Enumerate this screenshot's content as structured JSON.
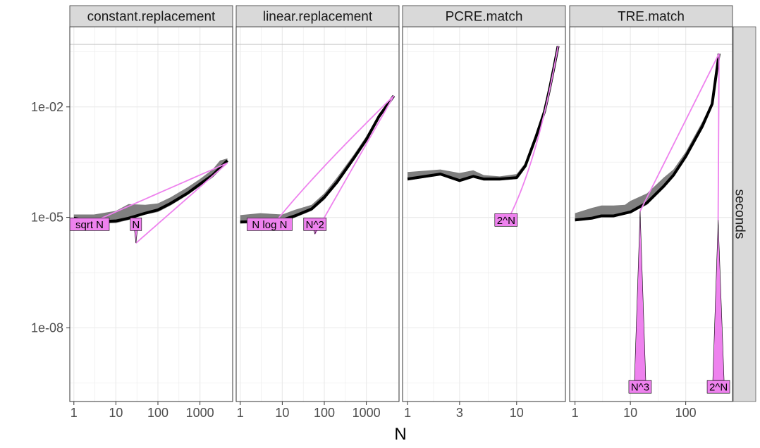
{
  "chart_data": {
    "type": "line",
    "log_x": true,
    "log_y": true,
    "xlabel": "N",
    "ylabel": "",
    "y_strip_label": "seconds",
    "y_ticks": [
      {
        "value": 1e-08,
        "label": "1e-08"
      },
      {
        "value": 1e-05,
        "label": "1e-05"
      },
      {
        "value": 0.01,
        "label": "1e-02"
      }
    ],
    "ylim": [
      1e-10,
      1.5
    ],
    "grid": true,
    "hline": 0.5,
    "colors": {
      "median": "#000000",
      "band": "#7f7f7f",
      "reference": "#ee82ee",
      "ref_fill": "#ee82ee",
      "strip_bg": "#d9d9d9",
      "grid": "#ebebeb"
    },
    "panels": [
      {
        "title": "constant.replacement",
        "xlim": [
          0.8,
          6000
        ],
        "x_ticks": [
          {
            "value": 1,
            "label": "1"
          },
          {
            "value": 10,
            "label": "10"
          },
          {
            "value": 100,
            "label": "100"
          },
          {
            "value": 1000,
            "label": "1000"
          }
        ],
        "median": [
          [
            1,
            9.5e-06
          ],
          [
            3,
            7.5e-06
          ],
          [
            10,
            8e-06
          ],
          [
            20,
            9.5e-06
          ],
          [
            50,
            1.3e-05
          ],
          [
            100,
            1.6e-05
          ],
          [
            200,
            2.4e-05
          ],
          [
            500,
            4.5e-05
          ],
          [
            1000,
            8e-05
          ],
          [
            2000,
            0.00014
          ],
          [
            3000,
            0.00022
          ],
          [
            4500,
            0.00035
          ]
        ],
        "band_low": [
          [
            1,
            8.5e-06
          ],
          [
            3,
            6.8e-06
          ],
          [
            10,
            7e-06
          ],
          [
            20,
            8.5e-06
          ],
          [
            50,
            1.2e-05
          ],
          [
            100,
            1.4e-05
          ],
          [
            200,
            2.1e-05
          ],
          [
            500,
            4e-05
          ],
          [
            1000,
            7e-05
          ],
          [
            2000,
            0.00012
          ],
          [
            3000,
            0.00019
          ],
          [
            4500,
            0.0003
          ]
        ],
        "band_high": [
          [
            1,
            1.2e-05
          ],
          [
            3,
            1.2e-05
          ],
          [
            10,
            1.5e-05
          ],
          [
            20,
            2.3e-05
          ],
          [
            50,
            2.2e-05
          ],
          [
            100,
            2.4e-05
          ],
          [
            200,
            3.5e-05
          ],
          [
            500,
            6.5e-05
          ],
          [
            1000,
            0.00011
          ],
          [
            2000,
            0.0002
          ],
          [
            3000,
            0.00035
          ],
          [
            4500,
            0.0004
          ]
        ],
        "references": [
          {
            "label": "sqrt N",
            "x_from": 1,
            "x_to": 4500,
            "y_at_to": 0.0003,
            "exponent": 0.5,
            "label_x": 1,
            "label_y": 6.5e-06
          },
          {
            "label": "N",
            "x_from": 30,
            "x_to": 4500,
            "y_at_to": 0.0003,
            "exponent": 1,
            "label_x": 30,
            "label_y": 6.5e-06
          }
        ]
      },
      {
        "title": "linear.replacement",
        "xlim": [
          0.8,
          6000
        ],
        "x_ticks": [
          {
            "value": 1,
            "label": "1"
          },
          {
            "value": 10,
            "label": "10"
          },
          {
            "value": 100,
            "label": "100"
          },
          {
            "value": 1000,
            "label": "1000"
          }
        ],
        "median": [
          [
            1,
            7.5e-06
          ],
          [
            3,
            7.8e-06
          ],
          [
            10,
            8.5e-06
          ],
          [
            20,
            1.1e-05
          ],
          [
            50,
            1.7e-05
          ],
          [
            100,
            3.5e-05
          ],
          [
            200,
            9e-05
          ],
          [
            500,
            0.0004
          ],
          [
            1000,
            0.0013
          ],
          [
            2000,
            0.0055
          ],
          [
            4500,
            0.02
          ]
        ],
        "band_low": [
          [
            1,
            6.8e-06
          ],
          [
            3,
            7e-06
          ],
          [
            10,
            7.5e-06
          ],
          [
            20,
            9.8e-06
          ],
          [
            50,
            1.5e-05
          ],
          [
            100,
            3e-05
          ],
          [
            200,
            8e-05
          ],
          [
            500,
            0.00035
          ],
          [
            1000,
            0.0011
          ],
          [
            2000,
            0.005
          ],
          [
            4500,
            0.018
          ]
        ],
        "band_high": [
          [
            1,
            1.15e-05
          ],
          [
            3,
            1.3e-05
          ],
          [
            10,
            1.2e-05
          ],
          [
            20,
            1.6e-05
          ],
          [
            50,
            2.2e-05
          ],
          [
            100,
            4.5e-05
          ],
          [
            200,
            0.00012
          ],
          [
            500,
            0.0005
          ],
          [
            1000,
            0.0016
          ],
          [
            2000,
            0.0065
          ],
          [
            4500,
            0.021
          ]
        ],
        "references": [
          {
            "label": "N log N",
            "x_from": 5,
            "x_to": 4500,
            "y_at_to": 0.02,
            "exponent": 1,
            "log_factor": true,
            "label_x": 5,
            "label_y": 6.5e-06
          },
          {
            "label": "N^2",
            "x_from": 60,
            "x_to": 4500,
            "y_at_to": 0.02,
            "exponent": 2,
            "label_x": 60,
            "label_y": 6.5e-06
          }
        ]
      },
      {
        "title": "PCRE.match",
        "xlim": [
          0.9,
          28
        ],
        "x_ticks": [
          {
            "value": 1,
            "label": "1"
          },
          {
            "value": 3,
            "label": "3"
          },
          {
            "value": 10,
            "label": "10"
          }
        ],
        "median": [
          [
            1,
            0.00011
          ],
          [
            2,
            0.00015
          ],
          [
            3,
            0.0001
          ],
          [
            4,
            0.00013
          ],
          [
            5,
            0.00011
          ],
          [
            7,
            0.00011
          ],
          [
            10,
            0.00012
          ],
          [
            12,
            0.00025
          ],
          [
            15,
            0.0015
          ],
          [
            18,
            0.0075
          ],
          [
            20,
            0.03
          ],
          [
            22,
            0.12
          ],
          [
            24,
            0.45
          ]
        ],
        "band_low": [
          [
            1,
            0.0001
          ],
          [
            2,
            0.00014
          ],
          [
            3,
            9.2e-05
          ],
          [
            4,
            0.00012
          ],
          [
            5,
            0.0001
          ],
          [
            7,
            0.0001
          ],
          [
            10,
            0.00011
          ],
          [
            12,
            0.00022
          ],
          [
            15,
            0.0013
          ],
          [
            18,
            0.0065
          ],
          [
            20,
            0.027
          ],
          [
            22,
            0.11
          ],
          [
            24,
            0.42
          ]
        ],
        "band_high": [
          [
            1,
            0.00017
          ],
          [
            2,
            0.0002
          ],
          [
            3,
            0.00016
          ],
          [
            4,
            0.00019
          ],
          [
            5,
            0.00014
          ],
          [
            7,
            0.00013
          ],
          [
            10,
            0.00015
          ],
          [
            12,
            0.0003
          ],
          [
            15,
            0.0019
          ],
          [
            18,
            0.009
          ],
          [
            20,
            0.035
          ],
          [
            22,
            0.14
          ],
          [
            24,
            0.5
          ]
        ],
        "references": [
          {
            "label": "2^N",
            "x_from": 8,
            "x_to": 24,
            "y_at_to": 0.45,
            "exponential": true,
            "label_x": 8,
            "label_y": 8.5e-06
          }
        ]
      },
      {
        "title": "TRE.match",
        "xlim": [
          0.8,
          700
        ],
        "x_ticks": [
          {
            "value": 1,
            "label": "1"
          },
          {
            "value": 10,
            "label": "10"
          },
          {
            "value": 100,
            "label": "100"
          }
        ],
        "median": [
          [
            1,
            8.5e-06
          ],
          [
            2,
            9.5e-06
          ],
          [
            3,
            1.1e-05
          ],
          [
            5,
            1.1e-05
          ],
          [
            8,
            1.3e-05
          ],
          [
            10,
            1.4e-05
          ],
          [
            20,
            2.5e-05
          ],
          [
            40,
            7e-05
          ],
          [
            60,
            0.00014
          ],
          [
            100,
            0.00045
          ],
          [
            200,
            0.003
          ],
          [
            300,
            0.012
          ],
          [
            400,
            0.28
          ]
        ],
        "band_low": [
          [
            1,
            7.8e-06
          ],
          [
            2,
            8.8e-06
          ],
          [
            3,
            1e-05
          ],
          [
            5,
            1e-05
          ],
          [
            8,
            1.2e-05
          ],
          [
            10,
            1.3e-05
          ],
          [
            20,
            2.2e-05
          ],
          [
            40,
            6.5e-05
          ],
          [
            60,
            0.00013
          ],
          [
            100,
            0.0004
          ],
          [
            200,
            0.0028
          ],
          [
            300,
            0.011
          ],
          [
            400,
            0.26
          ]
        ],
        "band_high": [
          [
            1,
            1.3e-05
          ],
          [
            2,
            1.8e-05
          ],
          [
            3,
            2.1e-05
          ],
          [
            5,
            2.1e-05
          ],
          [
            8,
            2.2e-05
          ],
          [
            10,
            2.8e-05
          ],
          [
            20,
            4.5e-05
          ],
          [
            40,
            0.00012
          ],
          [
            60,
            0.0002
          ],
          [
            100,
            0.0006
          ],
          [
            200,
            0.004
          ],
          [
            300,
            0.014
          ],
          [
            400,
            0.3
          ]
        ],
        "references": [
          {
            "label": "N^3",
            "x_from": 15,
            "x_to": 400,
            "y_at_to": 0.28,
            "exponent": 3,
            "label_x": 15,
            "label_y": 2.5e-10
          },
          {
            "label": "2^N",
            "x_from": 385,
            "x_to": 400,
            "y_at_to": 0.28,
            "exponential": true,
            "label_x": 390,
            "label_y": 2.5e-10
          }
        ]
      }
    ]
  }
}
